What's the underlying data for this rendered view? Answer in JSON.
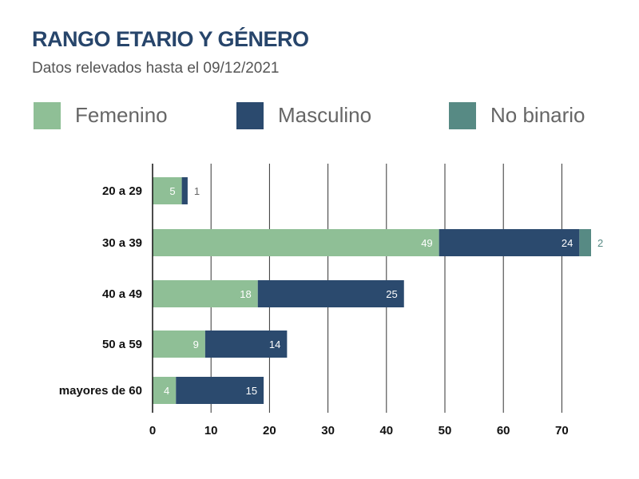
{
  "title": "RANGO ETARIO Y GÉNERO",
  "subtitle": "Datos relevados hasta el 09/12/2021",
  "colors": {
    "femenino": "#8fbf96",
    "masculino": "#2b4a6e",
    "no_binario": "#578a84",
    "grid": "#333333"
  },
  "legend": [
    {
      "name": "Femenino",
      "color": "#8fbf96"
    },
    {
      "name": "Masculino",
      "color": "#2b4a6e"
    },
    {
      "name": "No binario",
      "color": "#578a84"
    }
  ],
  "chart_data": {
    "type": "bar",
    "orientation": "horizontal",
    "stacked": true,
    "categories": [
      "20 a 29",
      "30 a 39",
      "40 a 49",
      "50 a 59",
      "mayores de 60"
    ],
    "series": [
      {
        "name": "Femenino",
        "values": [
          5,
          49,
          18,
          9,
          4
        ]
      },
      {
        "name": "Masculino",
        "values": [
          1,
          24,
          25,
          14,
          15
        ]
      },
      {
        "name": "No binario",
        "values": [
          0,
          2,
          0,
          0,
          0
        ]
      }
    ],
    "xlim": [
      0,
      72
    ],
    "xticks": [
      0,
      10,
      20,
      30,
      40,
      50,
      60,
      70
    ],
    "grid": true,
    "legend_position": "top"
  }
}
